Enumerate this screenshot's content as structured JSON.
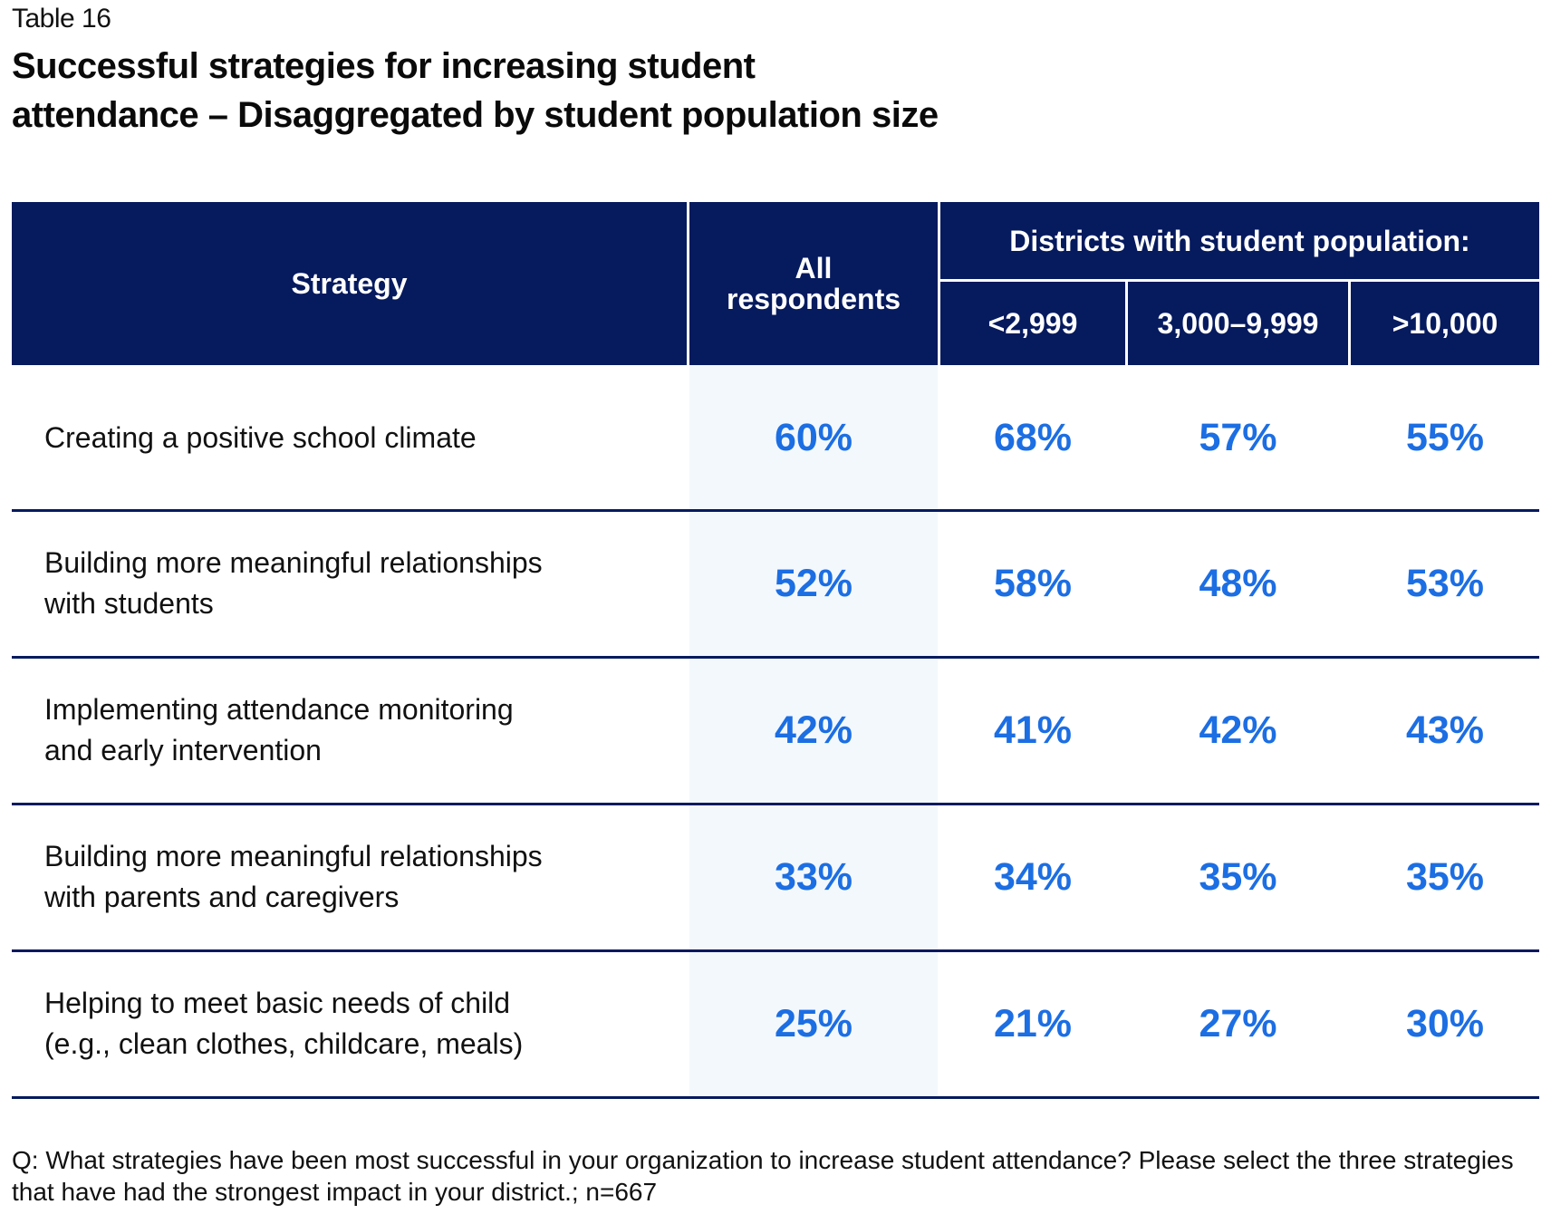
{
  "label": "Table 16",
  "title_lines": [
    "Successful strategies for increasing student",
    "attendance – Disaggregated by student population size"
  ],
  "header": {
    "strategy": "Strategy",
    "all": "All respondents",
    "group": "Districts with student population:",
    "sizes": [
      "<2,999",
      "3,000–9,999",
      ">10,000"
    ]
  },
  "rows": [
    {
      "strategy": "Creating a positive school climate",
      "values": [
        "60%",
        "68%",
        "57%",
        "55%"
      ]
    },
    {
      "strategy": "Building more meaningful relationships with students",
      "values": [
        "52%",
        "58%",
        "48%",
        "53%"
      ]
    },
    {
      "strategy": "Implementing attendance monitoring and early intervention",
      "values": [
        "42%",
        "41%",
        "42%",
        "43%"
      ]
    },
    {
      "strategy": "Building more meaningful relationships with parents and caregivers",
      "values": [
        "33%",
        "34%",
        "35%",
        "35%"
      ]
    },
    {
      "strategy": "Helping to meet basic needs of child (e.g., clean clothes, childcare, meals)",
      "values": [
        "25%",
        "21%",
        "27%",
        "30%"
      ]
    }
  ],
  "footnote": "Q: What strategies have been most successful in your organization to increase student attendance?  Please select the three strategies that have had the strongest impact in your district.; n=667",
  "colors": {
    "header_bg": "#061a5e",
    "value_blue": "#1c6ee3",
    "highlight_col": "#f3f8fc"
  }
}
